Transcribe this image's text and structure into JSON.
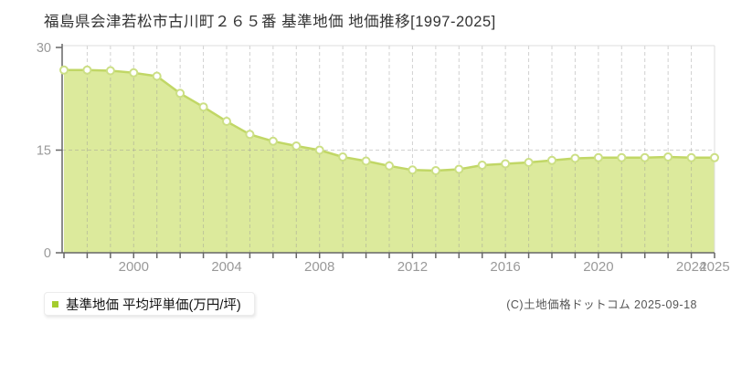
{
  "page": {
    "title": "福島県会津若松市古川町２６５番 基準地価 地価推移[1997-2025]",
    "copyright": "(C)土地価格ドットコム 2025-09-18"
  },
  "legend": {
    "label": "基準地価 平均坪単価(万円/坪)"
  },
  "colors": {
    "area_fill": "#dcea9c",
    "line": "#c1d766",
    "marker_ring": "#ccdf85",
    "marker_fill": "#ffffff",
    "legend_swatch": "#a4cc2e",
    "axis": "#666666",
    "grid": "#999999",
    "plot_border": "#dddddd",
    "tick_label": "#999999",
    "title_text": "#333333",
    "copyright_text": "#555555"
  },
  "chart_data": {
    "type": "area",
    "title": "福島県会津若松市古川町２６５番 基準地価 地価推移[1997-2025]",
    "series_name": "基準地価 平均坪単価(万円/坪)",
    "xlabel": "",
    "ylabel": "万円/坪",
    "x": [
      1997,
      1998,
      1999,
      2000,
      2001,
      2002,
      2003,
      2004,
      2005,
      2006,
      2007,
      2008,
      2009,
      2010,
      2011,
      2012,
      2013,
      2014,
      2015,
      2016,
      2017,
      2018,
      2019,
      2020,
      2021,
      2022,
      2023,
      2024,
      2025
    ],
    "values": [
      26.7,
      26.7,
      26.6,
      26.3,
      25.8,
      23.3,
      21.3,
      19.2,
      17.3,
      16.3,
      15.6,
      15.0,
      14.0,
      13.4,
      12.7,
      12.1,
      12.0,
      12.2,
      12.8,
      13.0,
      13.2,
      13.5,
      13.8,
      13.9,
      13.9,
      13.9,
      14.0,
      13.9,
      13.9
    ],
    "ylim": [
      0,
      30
    ],
    "yticks": [
      0,
      15,
      30
    ],
    "xtick_labels": [
      "2000",
      "2004",
      "2008",
      "2012",
      "2016",
      "2020",
      "2024",
      "2025"
    ],
    "grid": "dashed",
    "legend_position": "bottom-left"
  }
}
